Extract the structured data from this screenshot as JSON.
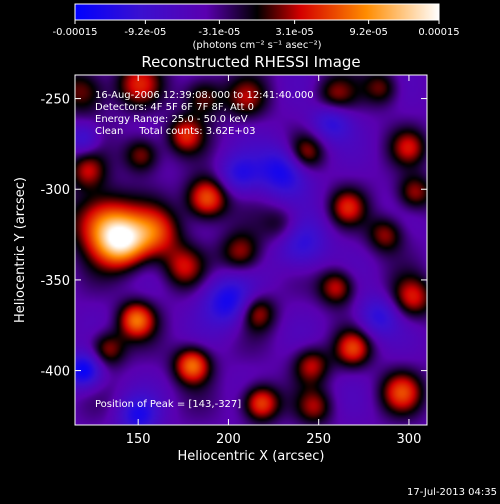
{
  "chart_data": {
    "type": "heatmap",
    "title": "Reconstructed RHESSI Image",
    "xlabel": "Heliocentric X (arcsec)",
    "ylabel": "Heliocentric Y (arcsec)",
    "xlim": [
      115,
      310
    ],
    "ylim": [
      -430,
      -237
    ],
    "x_ticks": [
      {
        "value": 150,
        "label": "150"
      },
      {
        "value": 200,
        "label": "200"
      },
      {
        "value": 250,
        "label": "250"
      },
      {
        "value": 300,
        "label": "300"
      }
    ],
    "y_ticks": [
      {
        "value": -250,
        "label": "-250"
      },
      {
        "value": -300,
        "label": "-300"
      },
      {
        "value": -350,
        "label": "-350"
      },
      {
        "value": -400,
        "label": "-400"
      }
    ],
    "colorbar": {
      "range": [
        -0.00015,
        0.00015
      ],
      "ticks": [
        {
          "value": -0.00015,
          "label": "-0.00015"
        },
        {
          "value": -9.2e-05,
          "label": "-9.2e-05"
        },
        {
          "value": -3.1e-05,
          "label": "-3.1e-05"
        },
        {
          "value": 3.1e-05,
          "label": "3.1e-05"
        },
        {
          "value": 9.2e-05,
          "label": "9.2e-05"
        },
        {
          "value": 0.00015,
          "label": "0.00015"
        }
      ],
      "unit_label": "(photons cm⁻² s⁻¹ asec⁻²)",
      "colors": [
        "#0000ff",
        "#5a00b0",
        "#000000",
        "#d40000",
        "#ff8c00",
        "#ffffff"
      ]
    },
    "annotations": {
      "time_range": "16-Aug-2006 12:39:08.000 to 12:41:40.000",
      "detectors": "Detectors: 4F 5F 6F 7F 8F, Att 0",
      "energy_range": "Energy Range: 25.0 - 50.0 keV",
      "method_counts": "Clean     Total counts: 3.62E+03",
      "peak_position": "Position of Peak = [143,-327]"
    },
    "sources": [
      {
        "x": 141,
        "y": -329,
        "amp": 1.0,
        "sigma": 10
      },
      {
        "x": 130,
        "y": -318,
        "amp": 0.7,
        "sigma": 12
      },
      {
        "x": 160,
        "y": -324,
        "amp": 0.6,
        "sigma": 10
      },
      {
        "x": 188,
        "y": -305,
        "amp": 0.8,
        "sigma": 8
      },
      {
        "x": 176,
        "y": -270,
        "amp": 0.55,
        "sigma": 7
      },
      {
        "x": 152,
        "y": -281,
        "amp": 0.5,
        "sigma": 7
      },
      {
        "x": 120,
        "y": -246,
        "amp": 0.45,
        "sigma": 9
      },
      {
        "x": 150,
        "y": -242,
        "amp": 0.5,
        "sigma": 9
      },
      {
        "x": 186,
        "y": -249,
        "amp": 0.45,
        "sigma": 8
      },
      {
        "x": 210,
        "y": -250,
        "amp": 0.4,
        "sigma": 8
      },
      {
        "x": 259,
        "y": -249,
        "amp": 0.45,
        "sigma": 8
      },
      {
        "x": 285,
        "y": -244,
        "amp": 0.4,
        "sigma": 7
      },
      {
        "x": 243,
        "y": -280,
        "amp": 0.45,
        "sigma": 7
      },
      {
        "x": 266,
        "y": -310,
        "amp": 0.5,
        "sigma": 7
      },
      {
        "x": 287,
        "y": -325,
        "amp": 0.45,
        "sigma": 7
      },
      {
        "x": 207,
        "y": -335,
        "amp": 0.5,
        "sigma": 8
      },
      {
        "x": 175,
        "y": -343,
        "amp": 0.45,
        "sigma": 8
      },
      {
        "x": 149,
        "y": -372,
        "amp": 0.75,
        "sigma": 7
      },
      {
        "x": 133,
        "y": -388,
        "amp": 0.5,
        "sigma": 7
      },
      {
        "x": 180,
        "y": -397,
        "amp": 0.8,
        "sigma": 7
      },
      {
        "x": 216,
        "y": -368,
        "amp": 0.5,
        "sigma": 7
      },
      {
        "x": 218,
        "y": -418,
        "amp": 0.75,
        "sigma": 7
      },
      {
        "x": 246,
        "y": -397,
        "amp": 0.5,
        "sigma": 7
      },
      {
        "x": 260,
        "y": -354,
        "amp": 0.55,
        "sigma": 7
      },
      {
        "x": 269,
        "y": -388,
        "amp": 0.6,
        "sigma": 7
      },
      {
        "x": 302,
        "y": -360,
        "amp": 0.55,
        "sigma": 8
      },
      {
        "x": 296,
        "y": -412,
        "amp": 0.6,
        "sigma": 8
      },
      {
        "x": 303,
        "y": -302,
        "amp": 0.5,
        "sigma": 7
      },
      {
        "x": 300,
        "y": -277,
        "amp": 0.45,
        "sigma": 7
      },
      {
        "x": 122,
        "y": -290,
        "amp": 0.45,
        "sigma": 7
      },
      {
        "x": 230,
        "y": -320,
        "amp": 0.35,
        "sigma": 8
      },
      {
        "x": 248,
        "y": -420,
        "amp": 0.4,
        "sigma": 7
      }
    ],
    "negative_regions": [
      {
        "x": 200,
        "y": -362,
        "amp": -0.6,
        "sigma": 10
      },
      {
        "x": 230,
        "y": -290,
        "amp": -0.6,
        "sigma": 10
      },
      {
        "x": 240,
        "y": -330,
        "amp": -0.5,
        "sigma": 10
      },
      {
        "x": 120,
        "y": -400,
        "amp": -0.7,
        "sigma": 7
      },
      {
        "x": 257,
        "y": -262,
        "amp": -0.5,
        "sigma": 8
      },
      {
        "x": 150,
        "y": -425,
        "amp": -0.5,
        "sigma": 8
      },
      {
        "x": 283,
        "y": -370,
        "amp": -0.45,
        "sigma": 8
      },
      {
        "x": 206,
        "y": -292,
        "amp": -0.45,
        "sigma": 8
      },
      {
        "x": 120,
        "y": -272,
        "amp": -0.4,
        "sigma": 6
      }
    ]
  },
  "footer": {
    "timestamp": "17-Jul-2013 04:35"
  }
}
